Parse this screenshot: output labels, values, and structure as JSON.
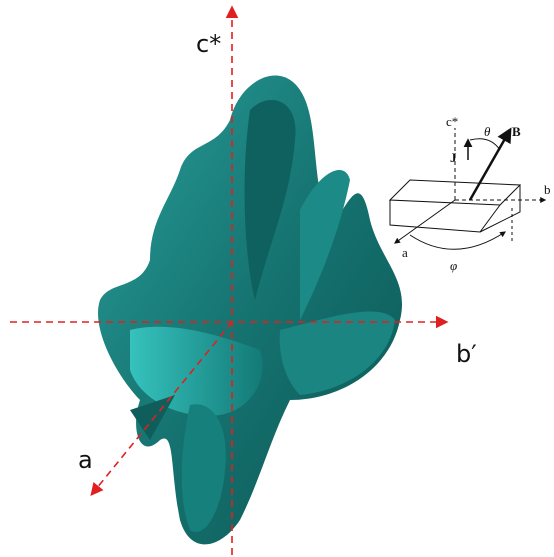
{
  "axes": {
    "c_star": "c*",
    "b_prime": "b′",
    "a": "a"
  },
  "inset": {
    "c_star": "c*",
    "theta": "θ",
    "B": "B",
    "J": "J",
    "b": "b",
    "a": "a",
    "phi": "φ"
  }
}
